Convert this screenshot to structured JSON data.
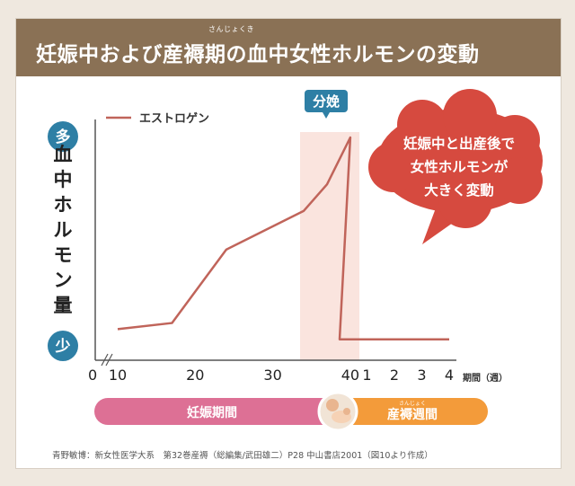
{
  "header": {
    "title": "妊娠中および産褥期の血中女性ホルモンの変動",
    "ruby": "さんじょくき"
  },
  "chart_data": {
    "type": "line",
    "title": "妊娠中および産褥期の血中女性ホルモンの変動",
    "ylabel": "血中ホルモン量",
    "y_high_label": "多",
    "y_low_label": "少",
    "series": [
      {
        "name": "エストロゲン",
        "color": "#c0645a",
        "segments": [
          {
            "period": "pregnancy_weeks",
            "x": [
              10,
              17,
              24,
              34,
              37,
              40
            ],
            "y": [
              0.06,
              0.09,
              0.45,
              0.64,
              0.77,
              1.0
            ]
          },
          {
            "period": "postpartum_weeks",
            "x": [
              0,
              4
            ],
            "y": [
              0.01,
              0.01
            ]
          }
        ]
      }
    ],
    "pregnancy_ticks": [
      "10",
      "20",
      "30",
      "40"
    ],
    "pregnancy_tick_values": [
      10,
      20,
      30,
      40
    ],
    "postpartum_ticks": [
      "1",
      "2",
      "3",
      "4"
    ],
    "postpartum_tick_values": [
      1,
      2,
      3,
      4
    ],
    "origin_label": "0",
    "postpartum_unit_label": "期間（週）",
    "delivery_label": "分娩",
    "callout": [
      "妊娠中と出産後で",
      "女性ホルモンが",
      "大きく変動"
    ],
    "bar_labels": {
      "pregnancy": "妊娠期間",
      "postpartum": "産褥週間",
      "postpartum_ruby": "さんじょく"
    },
    "grid": false
  },
  "source_note": "青野敏博：新女性医学大系　第32巻産褥（総編集/武田雄二）P28 中山書店2001（図10より作成）",
  "colors": {
    "header_bg": "#8a7155",
    "line": "#c0645a",
    "axis_badge": "#2e7fa5",
    "callout": "#d64a3f",
    "delivery_band": "#fae4de",
    "pregnancy_bar": "#dd7095",
    "postpartum_bar": "#f39b3a"
  }
}
